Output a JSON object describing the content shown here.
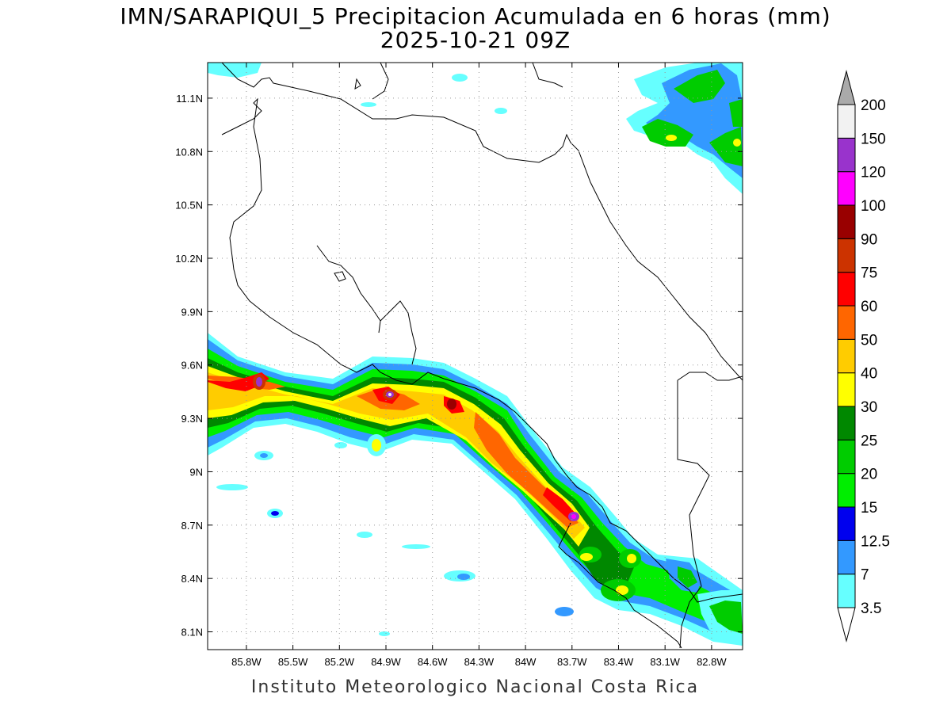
{
  "header": {
    "title": "IMN/SARAPIQUI_5 Precipitacion Acumulada en 6 horas (mm)",
    "subtitle": "2025-10-21 09Z"
  },
  "footer": {
    "credit": "Instituto Meteorologico Nacional Costa Rica"
  },
  "map": {
    "lon_range": [
      -86.05,
      -82.6
    ],
    "lat_range": [
      8.0,
      11.3
    ],
    "lon_ticks": [
      "85.8W",
      "85.5W",
      "85.2W",
      "84.9W",
      "84.6W",
      "84.3W",
      "84W",
      "83.7W",
      "83.4W",
      "83.1W",
      "82.8W"
    ],
    "lat_ticks": [
      "11.1N",
      "10.8N",
      "10.5N",
      "10.2N",
      "9.9N",
      "9.6N",
      "9.3N",
      "9N",
      "8.7N",
      "8.4N",
      "8.1N"
    ],
    "grid": "dotted"
  },
  "colorbar": {
    "levels": [
      "3.5",
      "7",
      "12.5",
      "15",
      "20",
      "25",
      "30",
      "40",
      "50",
      "60",
      "75",
      "90",
      "100",
      "120",
      "150",
      "200"
    ],
    "colors": [
      "#66ffff",
      "#3399ff",
      "#0000ee",
      "#00ee00",
      "#00cc00",
      "#008800",
      "#ffff00",
      "#ffcc00",
      "#ff6600",
      "#ff0000",
      "#cc3300",
      "#990000",
      "#ff00ff",
      "#9933cc",
      "#f2f2f2",
      "#aaaaaa"
    ]
  }
}
